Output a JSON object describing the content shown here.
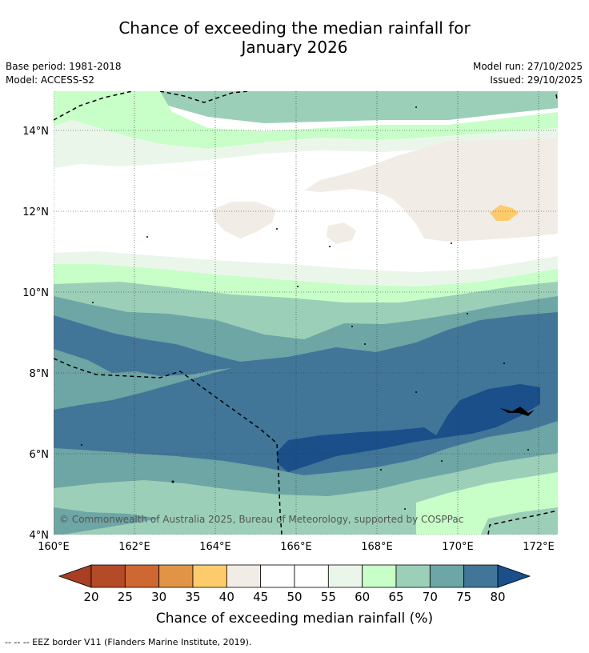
{
  "title_line1": "Chance of exceeding the median rainfall for",
  "title_line2": "January 2026",
  "meta": {
    "base_period": "Base period: 1981-2018",
    "model": "Model: ACCESS-S2",
    "model_run": "Model run: 27/10/2025",
    "issued": "Issued: 29/10/2025"
  },
  "axes": {
    "lon_labels": [
      "160°E",
      "162°E",
      "164°E",
      "166°E",
      "168°E",
      "170°E",
      "172°E"
    ],
    "lat_labels": [
      "14°N",
      "12°N",
      "10°N",
      "8°N",
      "6°N",
      "4°N"
    ]
  },
  "copyright": "© Commonwealth of Australia 2025, Bureau of Meteorology, supported by COSPPac",
  "colorbar": {
    "ticks": [
      "20",
      "25",
      "30",
      "35",
      "40",
      "45",
      "50",
      "55",
      "60",
      "65",
      "70",
      "75",
      "80"
    ],
    "colors": [
      "#a83e22",
      "#b54a28",
      "#cf6733",
      "#e19445",
      "#fecb6c",
      "#f1ece6",
      "#ffffff",
      "#ffffff",
      "#ebf6eb",
      "#c8fec8",
      "#9ccfb8",
      "#6ea5a5",
      "#417699",
      "#1a4f8a"
    ],
    "label": "Chance of exceeding median rainfall (%)"
  },
  "footer": "--  --  -- EEZ border V11 (Flanders Marine Institute, 2019)."
}
